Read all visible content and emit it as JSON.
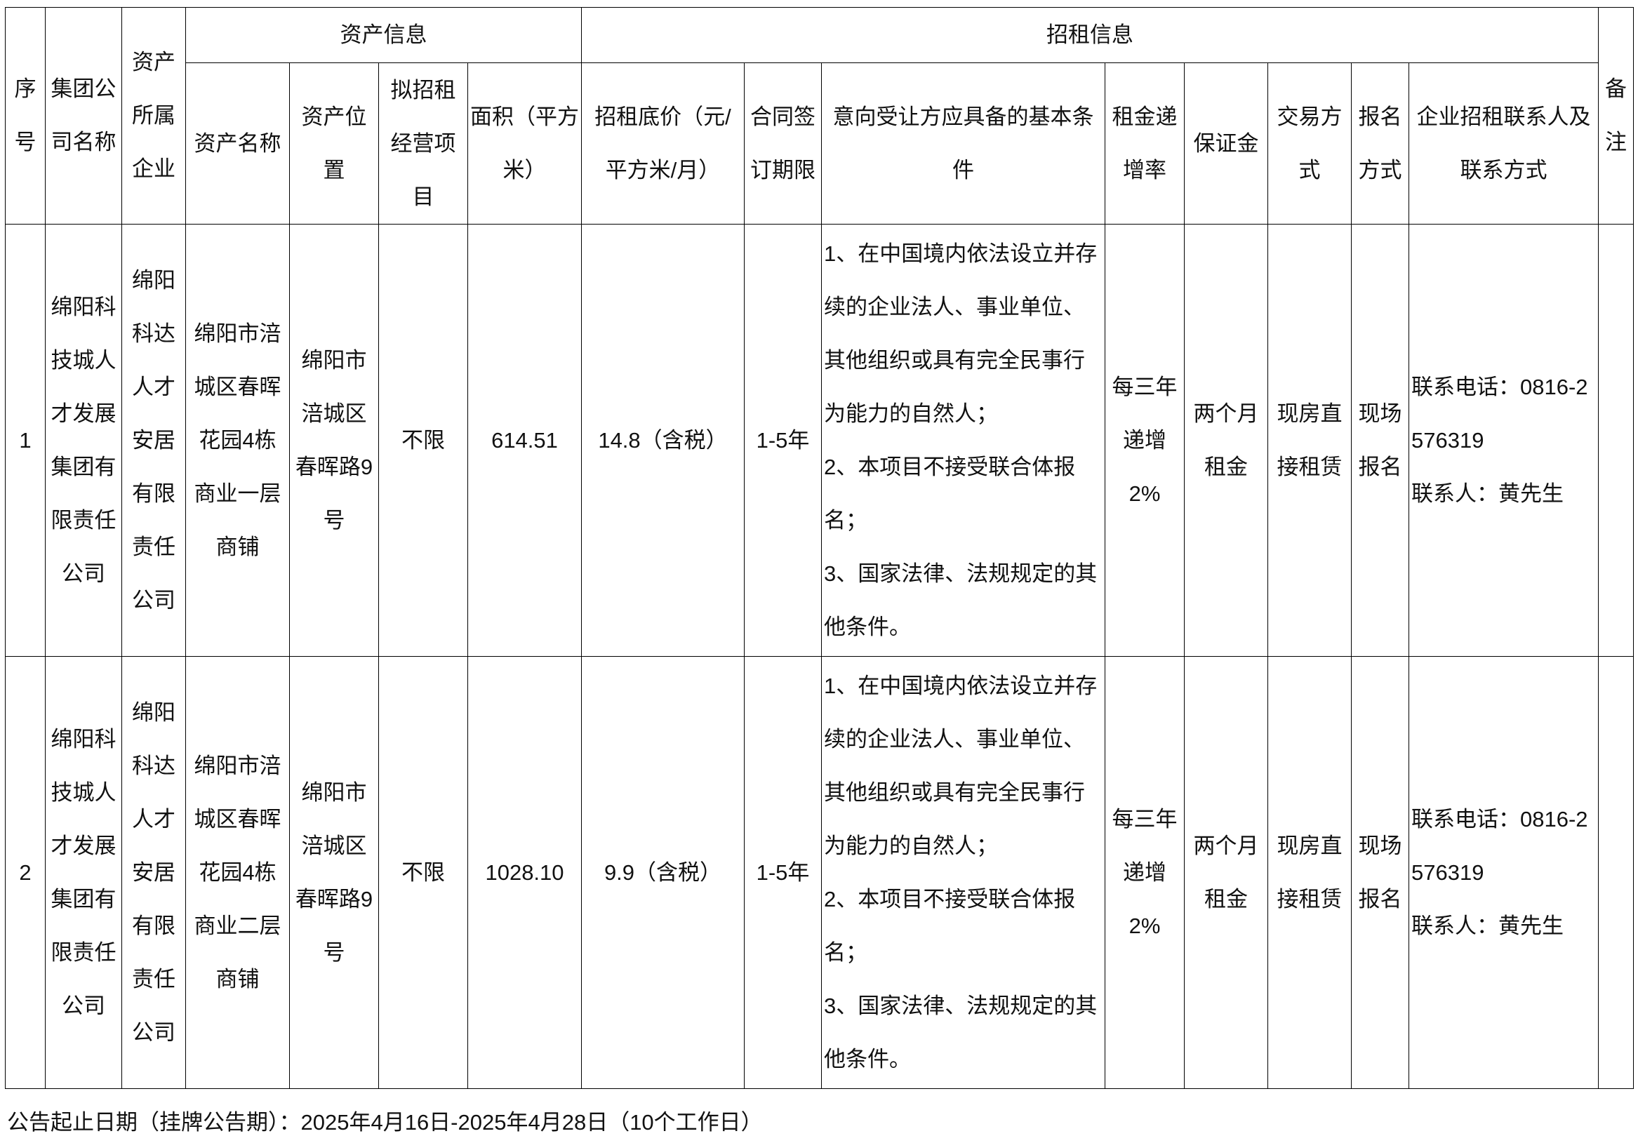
{
  "headers": {
    "seq": "序号",
    "group": "集团公司名称",
    "enterprise": "资产所属企业",
    "asset_info": "资产信息",
    "rent_info": "招租信息",
    "remark": "备注",
    "asset_name": "资产名称",
    "asset_location": "资产位置",
    "business": "拟招租经营项目",
    "area": "面积（平方米）",
    "base_price": "招租底价（元/平方米/月）",
    "term": "合同签订期限",
    "conditions": "意向受让方应具备的基本条件",
    "increase": "租金递增率",
    "deposit": "保证金",
    "trade": "交易方式",
    "signup": "报名方式",
    "contact": "企业招租联系人及联系方式"
  },
  "rows": [
    {
      "seq": "1",
      "group": "绵阳科技城人才发展集团有限责任公司",
      "enterprise": "绵阳科达人才安居有限责任公司",
      "asset_name": "绵阳市涪城区春晖花园4栋商业一层商铺",
      "asset_location": "绵阳市涪城区春晖路9号",
      "business": "不限",
      "area": "614.51",
      "base_price": "14.8（含税）",
      "term": "1-5年",
      "conditions": [
        "1、在中国境内依法设立并存续的企业法人、事业单位、其他组织或具有完全民事行为能力的自然人；",
        "2、本项目不接受联合体报名；",
        "3、国家法律、法规规定的其他条件。"
      ],
      "increase": "每三年递增2%",
      "deposit": "两个月租金",
      "trade": "现房直接租赁",
      "signup": "现场报名",
      "contact_phone": "联系电话：0816-2576319",
      "contact_person": "联系人：黄先生",
      "remark": ""
    },
    {
      "seq": "2",
      "group": "绵阳科技城人才发展集团有限责任公司",
      "enterprise": "绵阳科达人才安居有限责任公司",
      "asset_name": "绵阳市涪城区春晖花园4栋商业二层商铺",
      "asset_location": "绵阳市涪城区春晖路9号",
      "business": "不限",
      "area": "1028.10",
      "base_price": "9.9（含税）",
      "term": "1-5年",
      "conditions": [
        "1、在中国境内依法设立并存续的企业法人、事业单位、其他组织或具有完全民事行为能力的自然人；",
        "2、本项目不接受联合体报名；",
        "3、国家法律、法规规定的其他条件。"
      ],
      "increase": "每三年递增2%",
      "deposit": "两个月租金",
      "trade": "现房直接租赁",
      "signup": "现场报名",
      "contact_phone": "联系电话：0816-2576319",
      "contact_person": "联系人：黄先生",
      "remark": ""
    }
  ],
  "footer": "公告起止日期（挂牌公告期）：2025年4月16日-2025年4月28日（10个工作日）"
}
